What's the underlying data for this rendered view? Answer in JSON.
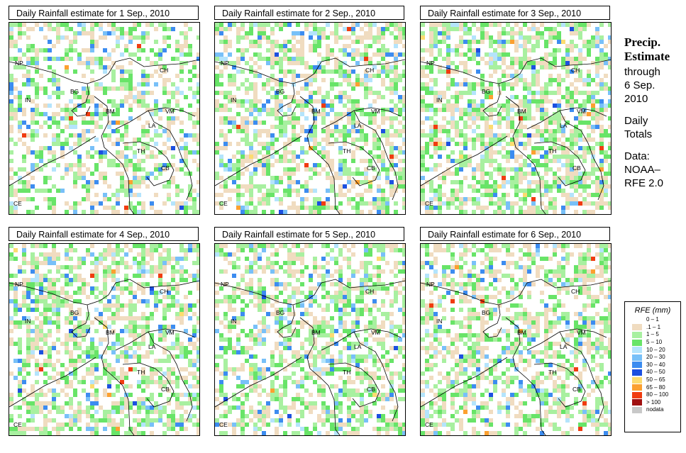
{
  "panels": [
    {
      "title": "Daily Rainfall estimate for  1 Sep., 2010",
      "seed": 11,
      "wet": 0.45,
      "heavy": 0.06
    },
    {
      "title": "Daily Rainfall estimate for  2 Sep., 2010",
      "seed": 23,
      "wet": 0.55,
      "heavy": 0.1
    },
    {
      "title": "Daily Rainfall estimate for  3 Sep., 2010",
      "seed": 37,
      "wet": 0.6,
      "heavy": 0.16
    },
    {
      "title": "Daily Rainfall estimate for  4 Sep., 2010",
      "seed": 41,
      "wet": 0.55,
      "heavy": 0.12
    },
    {
      "title": "Daily Rainfall estimate for  5 Sep., 2010",
      "seed": 53,
      "wet": 0.5,
      "heavy": 0.08
    },
    {
      "title": "Daily Rainfall estimate for  6 Sep., 2010",
      "seed": 67,
      "wet": 0.5,
      "heavy": 0.1
    }
  ],
  "country_labels": [
    "NP",
    "CH",
    "IN",
    "BG",
    "BM",
    "VM",
    "LA",
    "TH",
    "CB",
    "CE"
  ],
  "side": {
    "line1": "Precip.",
    "line2": "Estimate",
    "line3": "through",
    "line4": "6 Sep.",
    "line5": "2010",
    "line6": "Daily",
    "line7": "Totals",
    "line8": "Data:",
    "line9": "NOAA–",
    "line10": "RFE 2.0"
  },
  "legend": {
    "title": "RFE (mm)",
    "items": [
      {
        "label": "0 – 1",
        "color": "#ffffff"
      },
      {
        "label": ".1 – 1",
        "color": "#f0dcc0"
      },
      {
        "label": "1 – 5",
        "color": "#a8f0a0"
      },
      {
        "label": "5 – 10",
        "color": "#68e468"
      },
      {
        "label": "10 – 20",
        "color": "#b4e4fc"
      },
      {
        "label": "20 – 30",
        "color": "#78c0f8"
      },
      {
        "label": "30 – 40",
        "color": "#3c8cf0"
      },
      {
        "label": "40 – 50",
        "color": "#1c50e0"
      },
      {
        "label": "50 – 65",
        "color": "#fcdc70"
      },
      {
        "label": "65 – 80",
        "color": "#fca030"
      },
      {
        "label": "80 – 100",
        "color": "#f03c10"
      },
      {
        "label": "> 100",
        "color": "#a01010"
      },
      {
        "label": "nodata",
        "color": "#c8c8c8"
      }
    ]
  }
}
